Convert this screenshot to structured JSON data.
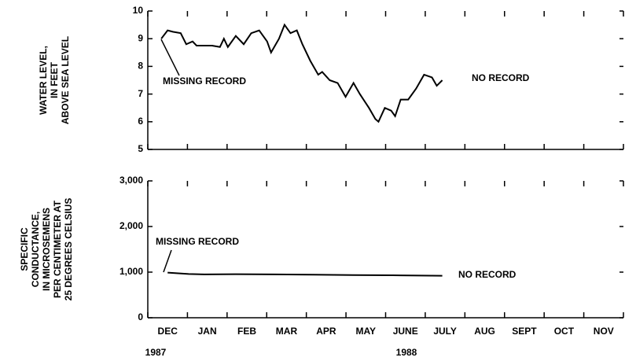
{
  "chart_data": [
    {
      "type": "line",
      "ylabel": [
        "WATER LEVEL,",
        "IN FEET",
        "ABOVE SEA LEVEL"
      ],
      "xlim": [
        0,
        12
      ],
      "xticks": [
        0,
        1,
        2,
        3,
        4,
        5,
        6,
        7,
        8,
        9,
        10,
        11,
        12
      ],
      "ylim": [
        5,
        10
      ],
      "yticks": [
        5,
        6,
        7,
        8,
        9,
        10
      ],
      "series": [
        {
          "color": "#000000",
          "x": [
            0.34,
            0.5,
            0.63,
            0.83,
            0.97,
            1.13,
            1.23,
            1.62,
            1.82,
            1.92,
            2.02,
            2.22,
            2.42,
            2.61,
            2.81,
            3.01,
            3.11,
            3.31,
            3.45,
            3.6,
            3.76,
            3.9,
            4.1,
            4.3,
            4.4,
            4.59,
            4.79,
            4.99,
            5.19,
            5.35,
            5.58,
            5.74,
            5.82,
            5.98,
            6.14,
            6.24,
            6.38,
            6.57,
            6.77,
            6.97,
            7.17,
            7.29,
            7.43
          ],
          "values": [
            9.0,
            9.3,
            9.25,
            9.2,
            8.8,
            8.9,
            8.75,
            8.75,
            8.7,
            9.0,
            8.7,
            9.1,
            8.8,
            9.2,
            9.3,
            8.9,
            8.5,
            9.0,
            9.5,
            9.2,
            9.3,
            8.8,
            8.2,
            7.7,
            7.8,
            7.5,
            7.4,
            6.9,
            7.4,
            7.0,
            6.5,
            6.1,
            6.0,
            6.5,
            6.4,
            6.2,
            6.8,
            6.8,
            7.2,
            7.7,
            7.6,
            7.3,
            7.5
          ]
        }
      ],
      "annotations": [
        "MISSING RECORD",
        "NO RECORD"
      ]
    },
    {
      "type": "line",
      "ylabel": [
        "SPECIFIC",
        "CONDUCTANCE,",
        "IN MICROSEMENS",
        "PER CENTIMETER AT",
        "25 DEGREES CELSIUS"
      ],
      "categories": [
        "DEC",
        "JAN",
        "FEB",
        "MAR",
        "APR",
        "MAY",
        "JUNE",
        "JULY",
        "AUG",
        "SEPT",
        "OCT",
        "NOV"
      ],
      "year_labels": [
        "1987",
        "1988"
      ],
      "xlim": [
        0,
        12
      ],
      "xticks": [
        0,
        1,
        2,
        3,
        4,
        5,
        6,
        7,
        8,
        9,
        10,
        11,
        12
      ],
      "ylim": [
        0,
        3000
      ],
      "yticks": [
        0,
        {
          "value": 1000,
          "label": "1,000"
        },
        {
          "value": 2000,
          "label": "2,000"
        },
        {
          "value": 3000,
          "label": "3,000"
        }
      ],
      "series": [
        {
          "color": "#000000",
          "x": [
            0.5,
            1.03,
            1.43,
            2.22,
            3.21,
            4.2,
            5.19,
            6.18,
            7.43
          ],
          "values": [
            990,
            960,
            950,
            955,
            950,
            945,
            935,
            930,
            920
          ]
        }
      ],
      "annotations": [
        "MISSING RECORD",
        "NO RECORD"
      ]
    }
  ]
}
